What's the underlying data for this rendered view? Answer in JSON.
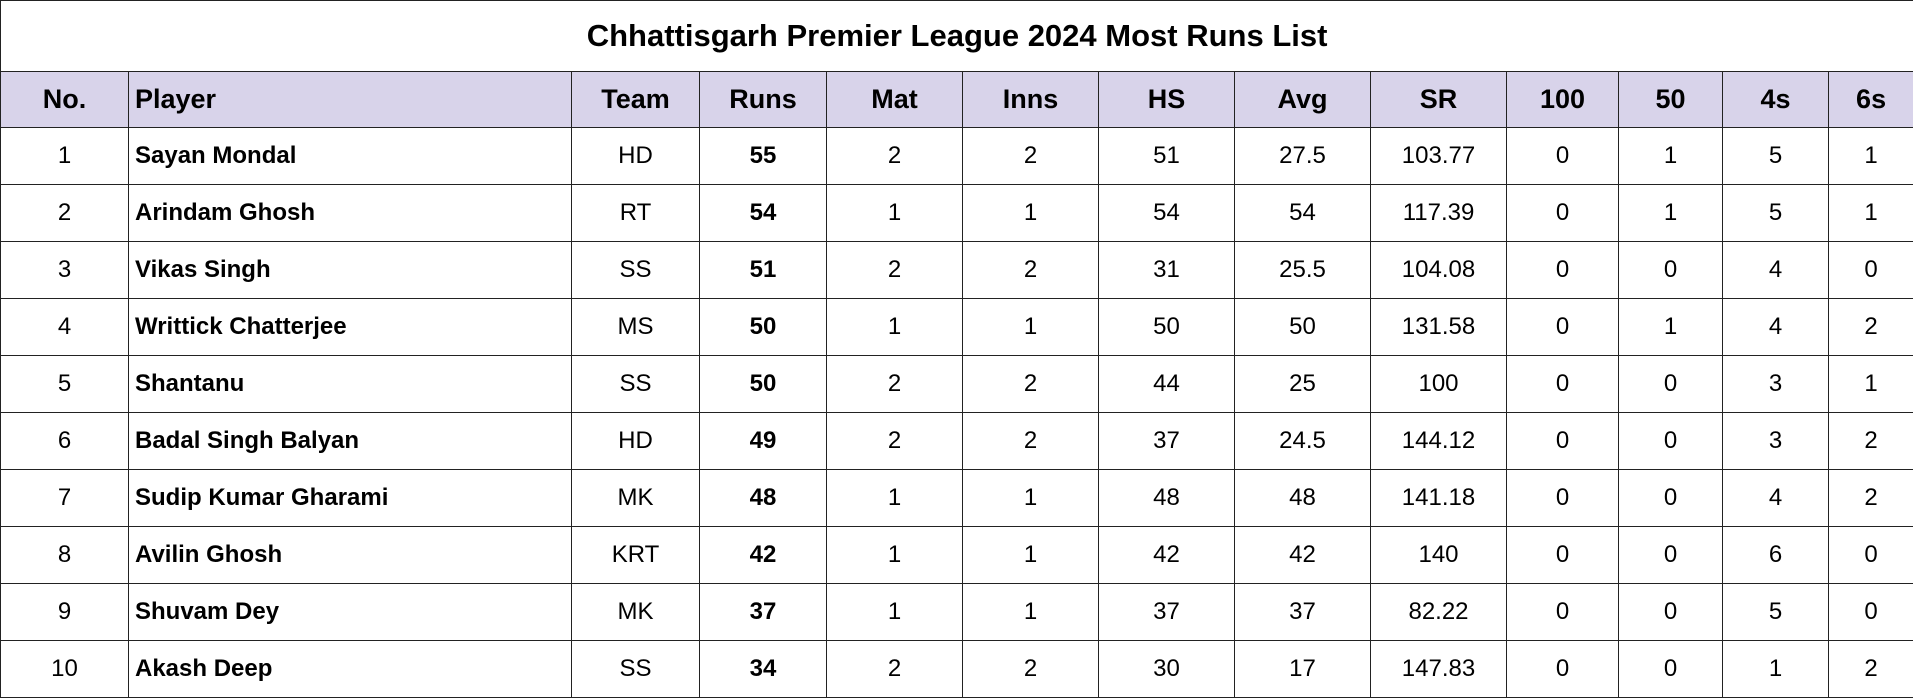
{
  "title": "Chhattisgarh Premier League 2024 Most Runs List",
  "columns": [
    "No.",
    "Player",
    "Team",
    "Runs",
    "Mat",
    "Inns",
    "HS",
    "Avg",
    "SR",
    "100",
    "50",
    "4s",
    "6s"
  ],
  "rows": [
    [
      "1",
      "Sayan Mondal",
      "HD",
      "55",
      "2",
      "2",
      "51",
      "27.5",
      "103.77",
      "0",
      "1",
      "5",
      "1"
    ],
    [
      "2",
      "Arindam Ghosh",
      "RT",
      "54",
      "1",
      "1",
      "54",
      "54",
      "117.39",
      "0",
      "1",
      "5",
      "1"
    ],
    [
      "3",
      "Vikas Singh",
      "SS",
      "51",
      "2",
      "2",
      "31",
      "25.5",
      "104.08",
      "0",
      "0",
      "4",
      "0"
    ],
    [
      "4",
      "Writtick Chatterjee",
      "MS",
      "50",
      "1",
      "1",
      "50",
      "50",
      "131.58",
      "0",
      "1",
      "4",
      "2"
    ],
    [
      "5",
      "Shantanu",
      "SS",
      "50",
      "2",
      "2",
      "44",
      "25",
      "100",
      "0",
      "0",
      "3",
      "1"
    ],
    [
      "6",
      "Badal Singh Balyan",
      "HD",
      "49",
      "2",
      "2",
      "37",
      "24.5",
      "144.12",
      "0",
      "0",
      "3",
      "2"
    ],
    [
      "7",
      "Sudip Kumar Gharami",
      "MK",
      "48",
      "1",
      "1",
      "48",
      "48",
      "141.18",
      "0",
      "0",
      "4",
      "2"
    ],
    [
      "8",
      "Avilin Ghosh",
      "KRT",
      "42",
      "1",
      "1",
      "42",
      "42",
      "140",
      "0",
      "0",
      "6",
      "0"
    ],
    [
      "9",
      "Shuvam Dey",
      "MK",
      "37",
      "1",
      "1",
      "37",
      "37",
      "82.22",
      "0",
      "0",
      "5",
      "0"
    ],
    [
      "10",
      "Akash Deep",
      "SS",
      "34",
      "2",
      "2",
      "30",
      "17",
      "147.83",
      "0",
      "0",
      "1",
      "2"
    ]
  ],
  "colors": {
    "header_bg": "#d8d3ea",
    "border": "#222222"
  }
}
